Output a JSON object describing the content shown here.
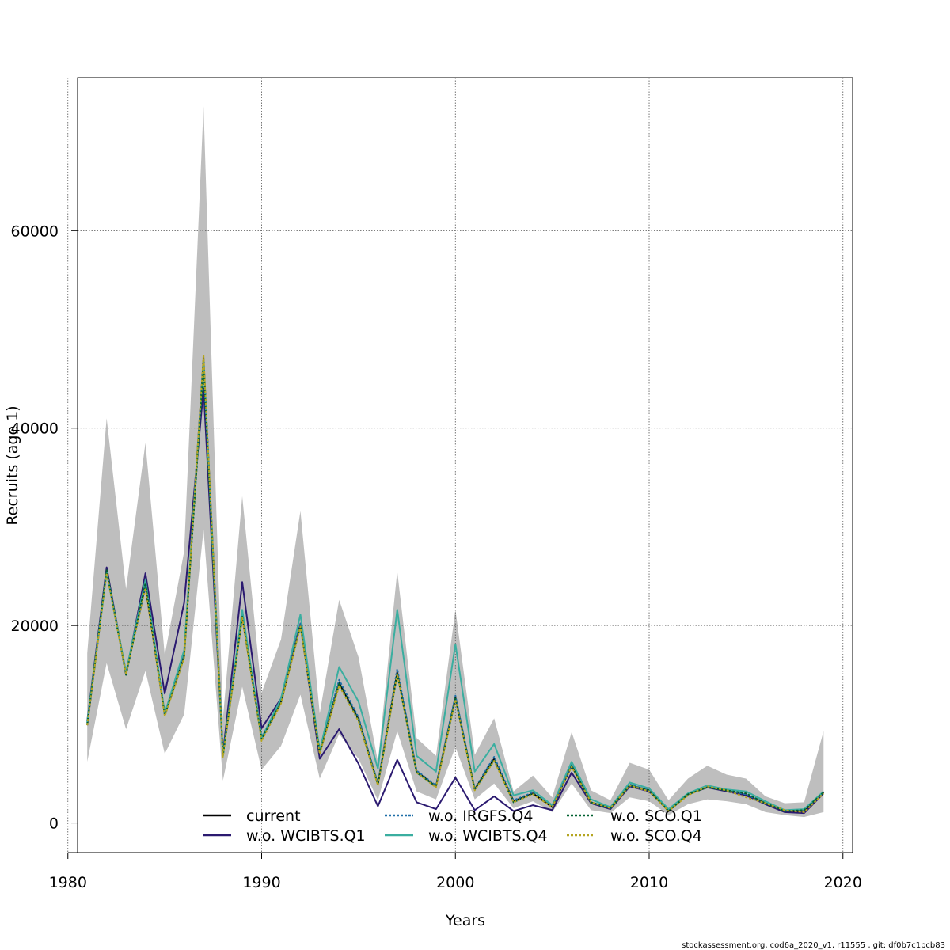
{
  "chart_data": {
    "type": "line",
    "title": "",
    "xlabel": "Years",
    "ylabel": "Recruits (age 1)",
    "xlim": [
      1980.5,
      2020.5
    ],
    "ylim": [
      -3000,
      75500
    ],
    "x_ticks": [
      1980,
      1990,
      2000,
      2010,
      2020
    ],
    "y_ticks": [
      0,
      20000,
      40000,
      60000
    ],
    "x_tick_labels": [
      "1980",
      "1990",
      "2000",
      "2010",
      "2020"
    ],
    "y_tick_labels": [
      "0",
      "20000",
      "40000",
      "60000"
    ],
    "grid": true,
    "legend_position": "bottom",
    "x": [
      1981,
      1982,
      1983,
      1984,
      1985,
      1986,
      1987,
      1988,
      1989,
      1990,
      1991,
      1992,
      1993,
      1994,
      1995,
      1996,
      1997,
      1998,
      1999,
      2000,
      2001,
      2002,
      2003,
      2004,
      2005,
      2006,
      2007,
      2008,
      2009,
      2010,
      2011,
      2012,
      2013,
      2014,
      2015,
      2016,
      2017,
      2018,
      2019
    ],
    "confidence_band": {
      "color": "#bebebe",
      "lower": [
        6200,
        16200,
        9500,
        15400,
        7000,
        11000,
        29700,
        4300,
        13800,
        5400,
        7800,
        13000,
        4500,
        9000,
        6500,
        2300,
        9300,
        3200,
        2400,
        7700,
        2400,
        4000,
        1500,
        2200,
        1100,
        4000,
        1300,
        1000,
        2600,
        2200,
        800,
        1900,
        2400,
        2200,
        1900,
        1100,
        800,
        600,
        1100
      ],
      "upper": [
        17200,
        41000,
        23700,
        38500,
        17000,
        27500,
        72600,
        10600,
        33100,
        13200,
        18600,
        31600,
        11100,
        22600,
        16800,
        6200,
        25500,
        8600,
        6800,
        21600,
        6900,
        10600,
        3200,
        4800,
        2600,
        9200,
        3300,
        2300,
        6100,
        5400,
        2300,
        4500,
        5800,
        4900,
        4500,
        2700,
        2000,
        2100,
        9300
      ]
    },
    "series": [
      {
        "name": "current",
        "color": "#000000",
        "dash": "",
        "values": [
          9900,
          25500,
          15200,
          24000,
          11000,
          17000,
          47100,
          6900,
          21000,
          8600,
          12300,
          20100,
          7100,
          14200,
          10500,
          3900,
          15300,
          5200,
          3700,
          12700,
          3400,
          6500,
          2200,
          3000,
          1600,
          5800,
          2100,
          1500,
          3800,
          3300,
          1200,
          2900,
          3700,
          3300,
          2800,
          2000,
          1200,
          1200,
          3100
        ]
      },
      {
        "name": "w.o. WCIBTS.Q1",
        "color": "#2b1a70",
        "dash": "",
        "values": [
          10300,
          25900,
          15000,
          25300,
          13100,
          22300,
          44000,
          7000,
          24400,
          9600,
          12600,
          20200,
          6500,
          9500,
          6000,
          1700,
          6400,
          2100,
          1400,
          4600,
          1300,
          2700,
          1200,
          1800,
          1300,
          5100,
          2000,
          1400,
          3700,
          3200,
          1300,
          2900,
          3600,
          3200,
          2800,
          1900,
          1100,
          1000,
          3000
        ]
      },
      {
        "name": "w.o. IRGFS.Q4",
        "color": "#1f6fa8",
        "dash": "3,2",
        "values": [
          10100,
          25500,
          15100,
          24100,
          11000,
          17000,
          46900,
          6900,
          21100,
          8700,
          12300,
          20200,
          7300,
          14500,
          10700,
          4000,
          15600,
          5300,
          3800,
          12900,
          3500,
          6700,
          2300,
          3100,
          1700,
          5900,
          2100,
          1500,
          3900,
          3300,
          1300,
          2900,
          3700,
          3300,
          2900,
          2000,
          1200,
          1300,
          3100
        ]
      },
      {
        "name": "w.o. WCIBTS.Q4",
        "color": "#3aaea0",
        "dash": "",
        "values": [
          10200,
          25400,
          15300,
          24600,
          11100,
          17500,
          46700,
          6800,
          21600,
          8600,
          12600,
          21100,
          7300,
          15800,
          12300,
          5500,
          21600,
          6800,
          5200,
          18100,
          5200,
          8000,
          2800,
          3300,
          1800,
          6200,
          2400,
          1600,
          4100,
          3500,
          1400,
          3000,
          3800,
          3400,
          3200,
          2200,
          1300,
          1400,
          3200
        ]
      },
      {
        "name": "w.o. SCO.Q1",
        "color": "#006030",
        "dash": "3,2",
        "values": [
          10000,
          25600,
          15000,
          24300,
          10900,
          16800,
          46300,
          6800,
          20900,
          8500,
          12200,
          20000,
          7100,
          14100,
          10400,
          3900,
          15100,
          5100,
          3700,
          12600,
          3400,
          6400,
          2100,
          3000,
          1600,
          5800,
          2100,
          1500,
          3800,
          3300,
          1200,
          2900,
          3600,
          3300,
          3000,
          2000,
          1200,
          1300,
          3100
        ]
      },
      {
        "name": "w.o. SCO.Q4",
        "color": "#b5a520",
        "dash": "3,2",
        "values": [
          9900,
          25300,
          15100,
          23800,
          10800,
          16700,
          47400,
          6700,
          20800,
          8300,
          12100,
          19900,
          7000,
          13900,
          10300,
          3800,
          15100,
          5100,
          3600,
          12500,
          3300,
          6300,
          2100,
          2900,
          1600,
          5700,
          2100,
          1500,
          3800,
          3200,
          1200,
          2800,
          3700,
          3300,
          2600,
          2000,
          1300,
          1100,
          3000
        ]
      }
    ]
  },
  "footer": "stockassessment.org, cod6a_2020_v1, r11555 , git: df0b7c1bcb83"
}
